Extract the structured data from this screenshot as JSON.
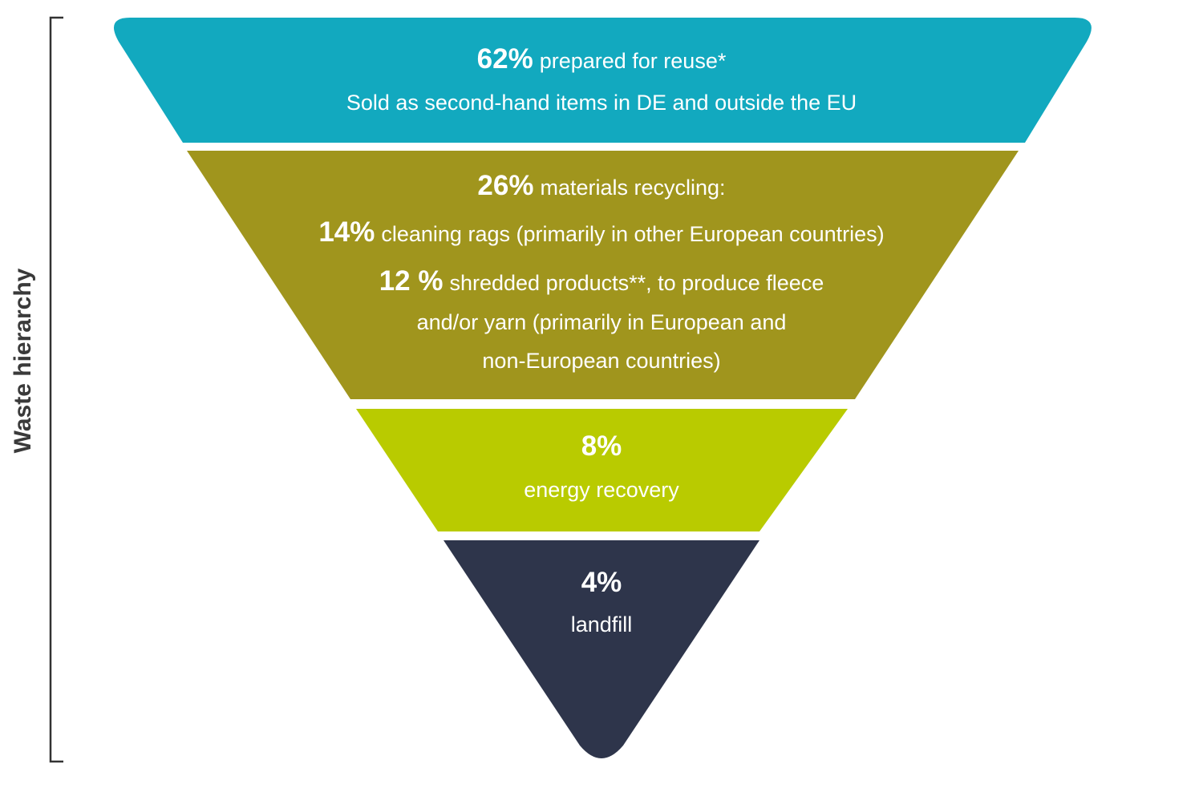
{
  "label": "Waste hierarchy",
  "layers": [
    {
      "lines": [
        {
          "percent": "62%",
          "text": "prepared for reuse*"
        },
        {
          "text": "Sold as second-hand items in DE and outside the EU"
        }
      ]
    },
    {
      "lines": [
        {
          "percent": "26%",
          "text": "materials recycling:"
        },
        {
          "percent": "14%",
          "text": "cleaning rags (primarily in other European countries)"
        },
        {
          "percent": "12 %",
          "text": "shredded products**, to produce fleece"
        },
        {
          "text": "and/or yarn (primarily in European and"
        },
        {
          "text": "non-European countries)"
        }
      ]
    },
    {
      "lines": [
        {
          "percent": "8%"
        },
        {
          "text": "energy recovery"
        }
      ]
    },
    {
      "lines": [
        {
          "percent": "4%"
        },
        {
          "text": "landfill"
        }
      ]
    }
  ]
}
